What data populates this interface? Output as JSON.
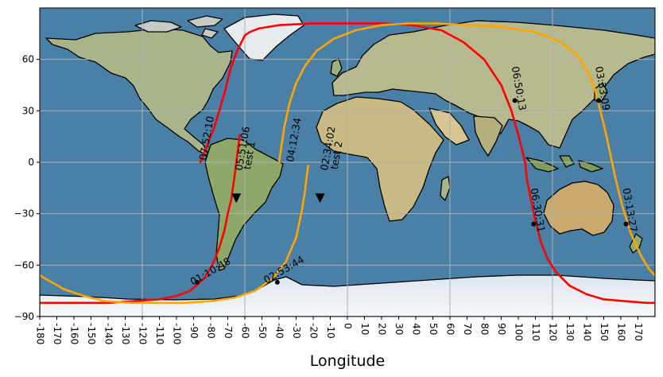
{
  "chart_data": {
    "type": "map",
    "projection": "plate-carree",
    "xlim": [
      -180,
      180
    ],
    "ylim": [
      -90,
      90
    ],
    "xlabel": "Longitude",
    "ylabel": "",
    "grid": true,
    "xticks": [
      -180,
      -170,
      -160,
      -150,
      -140,
      -130,
      -120,
      -110,
      -100,
      -90,
      -80,
      -70,
      -60,
      -50,
      -40,
      -30,
      -20,
      -10,
      0,
      10,
      20,
      30,
      40,
      50,
      60,
      70,
      80,
      90,
      100,
      110,
      120,
      130,
      140,
      150,
      160,
      170
    ],
    "xtick_labels": [
      "-180",
      "-170",
      "-160",
      "-150",
      "-140",
      "-130",
      "-120",
      "-110",
      "-100",
      "-90",
      "-80",
      "-70",
      "-60",
      "-50",
      "-40",
      "-30",
      "-20",
      "-10",
      "0",
      "10",
      "20",
      "30",
      "40",
      "50",
      "60",
      "70",
      "80",
      "90",
      "100",
      "110",
      "120",
      "130",
      "140",
      "150",
      "160",
      "170"
    ],
    "yticks": [
      60,
      30,
      0,
      -30,
      -60,
      -90
    ],
    "ytick_labels": [
      "60",
      "30",
      "0",
      "−30",
      "−60",
      "−90"
    ],
    "colors": {
      "test_1": "#ff0000",
      "test_2": "#ffa500",
      "coast": "#000000",
      "grid": "#b0b0b0",
      "ocean": "#4a7fa6"
    },
    "series": [
      {
        "name": "test 1",
        "color": "#ff0000",
        "lon": [
          -86,
          -78,
          -72,
          -68,
          -64,
          -60,
          -57,
          -52,
          -40,
          -20,
          0,
          20,
          38,
          55,
          68,
          80,
          90,
          96,
          100,
          102,
          104,
          105,
          107,
          110,
          113,
          117,
          122,
          130,
          140,
          150,
          162,
          175,
          180
        ],
        "lat": [
          0,
          20,
          40,
          56,
          66,
          74,
          76,
          78,
          80,
          81,
          81,
          81,
          80,
          77,
          70,
          60,
          45,
          30,
          16,
          8,
          0,
          -10,
          -20,
          -34,
          -46,
          -56,
          -64,
          -72,
          -77,
          -80,
          -81,
          -82,
          -82
        ]
      },
      {
        "name": "test 1",
        "color": "#ff0000",
        "lon": [
          -180,
          -170,
          -155,
          -140,
          -125,
          -110,
          -100,
          -92,
          -84,
          -79,
          -75,
          -72,
          -70,
          -68,
          -67,
          -66,
          -65,
          -64,
          -63
        ],
        "lat": [
          -82,
          -82,
          -82,
          -82,
          -81,
          -80,
          -78,
          -75,
          -68,
          -60,
          -50,
          -40,
          -30,
          -22,
          -15,
          -8,
          0,
          8,
          16
        ]
      },
      {
        "name": "test 2",
        "color": "#ffa500",
        "lon": [
          -180,
          -166,
          -154,
          -142,
          -126,
          -110,
          -95,
          -80,
          -66,
          -54,
          -44,
          -36,
          -30,
          -27,
          -25,
          -24,
          -23
        ],
        "lat": [
          -66,
          -74,
          -78,
          -81,
          -82,
          -82,
          -82,
          -81,
          -79,
          -75,
          -68,
          -58,
          -44,
          -30,
          -18,
          -10,
          -2
        ]
      },
      {
        "name": "test 2",
        "color": "#ffa500",
        "lon": [
          -40,
          -37,
          -34,
          -30,
          -25,
          -18,
          -8,
          5,
          20,
          36,
          52,
          70,
          90,
          110,
          125,
          135,
          141,
          145,
          148,
          151,
          154,
          157,
          161,
          166,
          172,
          177,
          180
        ],
        "lat": [
          0,
          20,
          34,
          46,
          56,
          65,
          72,
          77,
          80,
          81,
          81,
          80,
          79,
          76,
          70,
          62,
          52,
          42,
          30,
          18,
          4,
          -10,
          -26,
          -42,
          -55,
          -63,
          -66
        ]
      }
    ],
    "markers": [
      {
        "lon": -65,
        "lat": -21,
        "shape": "triangle-down"
      },
      {
        "lon": -16,
        "lat": -21,
        "shape": "triangle-down"
      },
      {
        "lon": 98,
        "lat": 36,
        "shape": "dot"
      },
      {
        "lon": 147,
        "lat": 36,
        "shape": "dot"
      },
      {
        "lon": 109,
        "lat": -36,
        "shape": "dot"
      },
      {
        "lon": 163,
        "lat": -36,
        "shape": "dot"
      },
      {
        "lon": -88,
        "lat": -70,
        "shape": "dot"
      },
      {
        "lon": -41,
        "lat": -70,
        "shape": "dot"
      }
    ],
    "annotations": [
      {
        "text": "07:52:10",
        "lon": -82,
        "lat": 14,
        "rotation": -80
      },
      {
        "text": "05:51:06",
        "lon": -61,
        "lat": 8,
        "rotation": -80
      },
      {
        "text": "test 1",
        "lon": -57,
        "lat": 4,
        "rotation": -80
      },
      {
        "text": "04:12:34",
        "lon": -31,
        "lat": 13,
        "rotation": -80
      },
      {
        "text": "02:34:02",
        "lon": -11,
        "lat": 8,
        "rotation": -80
      },
      {
        "text": "test 2",
        "lon": -6,
        "lat": 4,
        "rotation": -80
      },
      {
        "text": "06:50:13",
        "lon": 100,
        "lat": 43,
        "rotation": 80
      },
      {
        "text": "03:33:09",
        "lon": 149,
        "lat": 43,
        "rotation": 80
      },
      {
        "text": "06:30:31",
        "lon": 111,
        "lat": -28,
        "rotation": 80
      },
      {
        "text": "03:13:27",
        "lon": 165,
        "lat": -28,
        "rotation": 80
      },
      {
        "text": "01:10:48",
        "lon": -80,
        "lat": -64,
        "rotation": -30
      },
      {
        "text": "02:53:44",
        "lon": -37,
        "lat": -63,
        "rotation": -30
      }
    ]
  }
}
